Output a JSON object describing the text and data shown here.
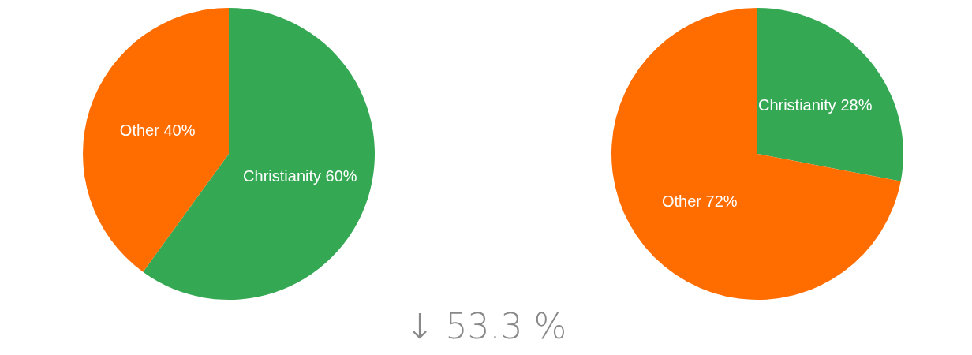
{
  "chart_data": [
    {
      "type": "pie",
      "categories": [
        "Christianity",
        "Other"
      ],
      "values": [
        60,
        40
      ],
      "colors": [
        "#34a853",
        "#ff6d00"
      ],
      "value_labels": [
        "60%",
        "40%"
      ],
      "annotations": [
        "↓ 53.3 %"
      ]
    },
    {
      "type": "pie",
      "categories": [
        "Christianity",
        "Other"
      ],
      "values": [
        28,
        72
      ],
      "colors": [
        "#34a853",
        "#ff6d00"
      ],
      "value_labels": [
        "28%",
        "72%"
      ]
    }
  ]
}
